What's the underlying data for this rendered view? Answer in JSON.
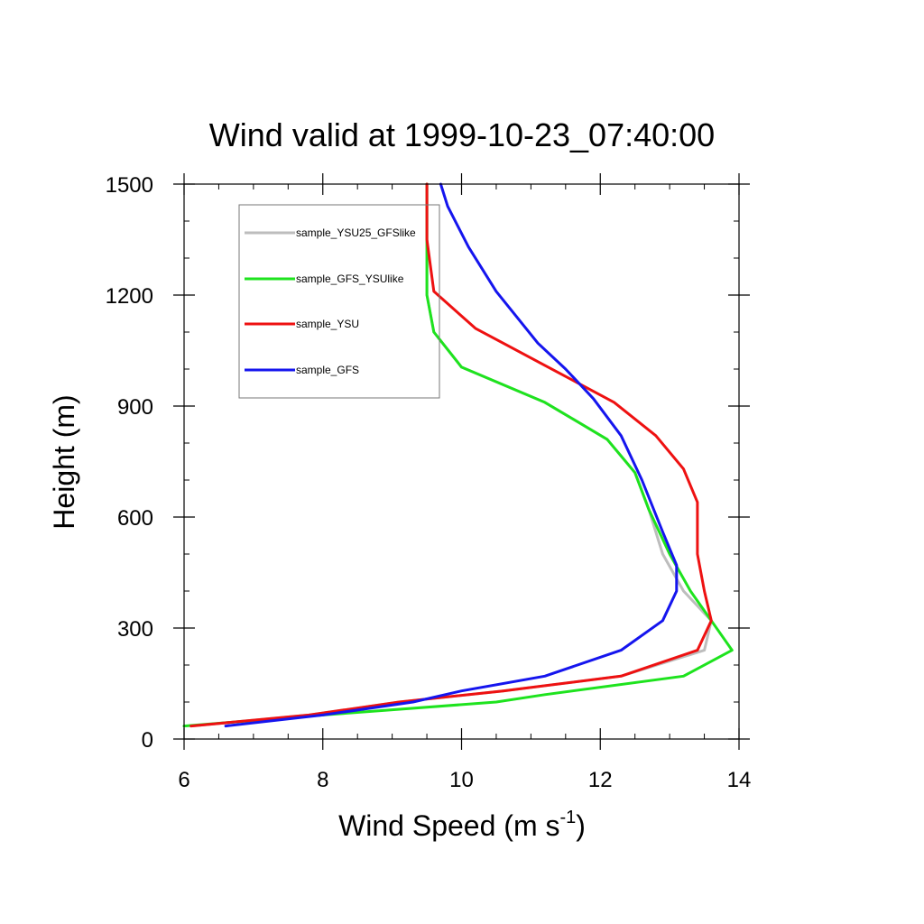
{
  "chart_data": {
    "type": "line",
    "title": "Wind valid at 1999-10-23_07:40:00",
    "xlabel": "Wind Speed (m s",
    "xlabel_sup": "-1",
    "xlabel_end": ")",
    "ylabel": "Height (m)",
    "xlim": [
      6,
      14
    ],
    "ylim": [
      0,
      1500
    ],
    "xticks": [
      6,
      8,
      10,
      12,
      14
    ],
    "yticks": [
      0,
      300,
      600,
      900,
      1200,
      1500
    ],
    "x_minor_step": 0.5,
    "y_minor_step": 100,
    "legend_position": "top-left",
    "series": [
      {
        "name": "sample_YSU25_GFSlike",
        "color": "#bdbdbd",
        "points": [
          [
            6.1,
            35
          ],
          [
            7.8,
            65
          ],
          [
            9.1,
            100
          ],
          [
            10.6,
            130
          ],
          [
            12.3,
            170
          ],
          [
            13.5,
            240
          ],
          [
            13.6,
            320
          ],
          [
            13.2,
            400
          ],
          [
            12.9,
            500
          ],
          [
            12.7,
            620
          ],
          [
            12.5,
            720
          ],
          [
            12.1,
            810
          ],
          [
            11.2,
            910
          ],
          [
            10.0,
            1005
          ],
          [
            9.6,
            1100
          ],
          [
            9.5,
            1200
          ],
          [
            9.5,
            1300
          ],
          [
            9.5,
            1500
          ]
        ]
      },
      {
        "name": "sample_GFS_YSUlike",
        "color": "#1ee31e",
        "points": [
          [
            6.0,
            35
          ],
          [
            8.0,
            65
          ],
          [
            10.5,
            100
          ],
          [
            11.2,
            120
          ],
          [
            13.2,
            170
          ],
          [
            13.9,
            240
          ],
          [
            13.6,
            320
          ],
          [
            13.3,
            400
          ],
          [
            13.0,
            500
          ],
          [
            12.7,
            620
          ],
          [
            12.5,
            720
          ],
          [
            12.1,
            810
          ],
          [
            11.2,
            910
          ],
          [
            10.0,
            1005
          ],
          [
            9.6,
            1100
          ],
          [
            9.5,
            1200
          ],
          [
            9.5,
            1300
          ],
          [
            9.5,
            1500
          ]
        ]
      },
      {
        "name": "sample_YSU",
        "color": "#ee1111",
        "points": [
          [
            6.1,
            35
          ],
          [
            7.8,
            65
          ],
          [
            9.1,
            100
          ],
          [
            10.6,
            130
          ],
          [
            12.3,
            170
          ],
          [
            13.4,
            240
          ],
          [
            13.6,
            320
          ],
          [
            13.5,
            400
          ],
          [
            13.4,
            500
          ],
          [
            13.4,
            640
          ],
          [
            13.2,
            730
          ],
          [
            12.8,
            820
          ],
          [
            12.2,
            910
          ],
          [
            11.2,
            1010
          ],
          [
            10.2,
            1110
          ],
          [
            9.6,
            1210
          ],
          [
            9.5,
            1350
          ],
          [
            9.5,
            1500
          ]
        ]
      },
      {
        "name": "sample_GFS",
        "color": "#1515ee",
        "points": [
          [
            6.6,
            35
          ],
          [
            8.0,
            65
          ],
          [
            9.3,
            100
          ],
          [
            10.0,
            130
          ],
          [
            11.2,
            170
          ],
          [
            12.3,
            240
          ],
          [
            12.9,
            320
          ],
          [
            13.1,
            400
          ],
          [
            13.1,
            470
          ],
          [
            12.9,
            560
          ],
          [
            12.6,
            700
          ],
          [
            12.3,
            820
          ],
          [
            11.9,
            920
          ],
          [
            11.5,
            1000
          ],
          [
            11.1,
            1070
          ],
          [
            10.5,
            1210
          ],
          [
            10.1,
            1330
          ],
          [
            9.8,
            1440
          ],
          [
            9.7,
            1500
          ]
        ]
      }
    ]
  }
}
